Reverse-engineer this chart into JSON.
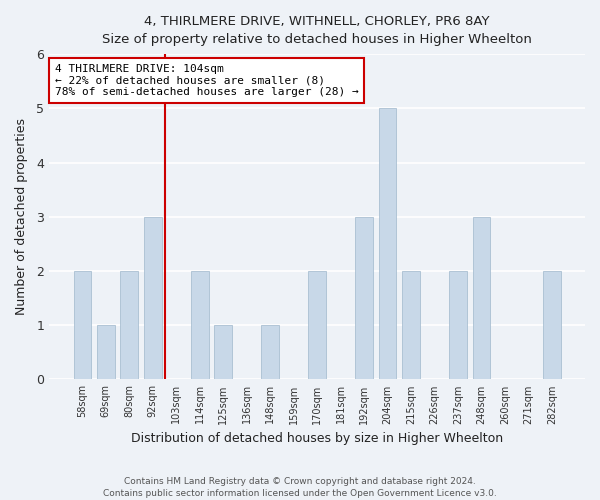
{
  "title": "4, THIRLMERE DRIVE, WITHNELL, CHORLEY, PR6 8AY",
  "subtitle": "Size of property relative to detached houses in Higher Wheelton",
  "xlabel": "Distribution of detached houses by size in Higher Wheelton",
  "ylabel": "Number of detached properties",
  "bar_labels": [
    "58sqm",
    "69sqm",
    "80sqm",
    "92sqm",
    "103sqm",
    "114sqm",
    "125sqm",
    "136sqm",
    "148sqm",
    "159sqm",
    "170sqm",
    "181sqm",
    "192sqm",
    "204sqm",
    "215sqm",
    "226sqm",
    "237sqm",
    "248sqm",
    "260sqm",
    "271sqm",
    "282sqm"
  ],
  "bar_values": [
    2,
    1,
    2,
    3,
    0,
    2,
    1,
    0,
    1,
    0,
    2,
    0,
    3,
    5,
    2,
    0,
    2,
    3,
    0,
    0,
    2
  ],
  "bar_color": "#c8d8e8",
  "highlight_index": 4,
  "highlight_line_color": "#cc0000",
  "annotation_line1": "4 THIRLMERE DRIVE: 104sqm",
  "annotation_line2": "← 22% of detached houses are smaller (8)",
  "annotation_line3": "78% of semi-detached houses are larger (28) →",
  "annotation_box_color": "#ffffff",
  "annotation_box_edge_color": "#cc0000",
  "ylim": [
    0,
    6
  ],
  "yticks": [
    0,
    1,
    2,
    3,
    4,
    5,
    6
  ],
  "footer1": "Contains HM Land Registry data © Crown copyright and database right 2024.",
  "footer2": "Contains public sector information licensed under the Open Government Licence v3.0.",
  "bg_color": "#eef2f7",
  "plot_bg_color": "#eef2f7"
}
